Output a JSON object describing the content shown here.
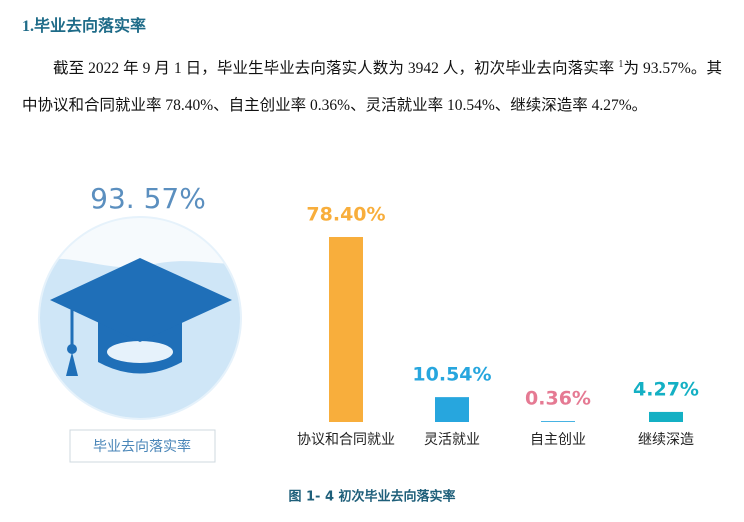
{
  "heading": "1.毕业去向落实率",
  "paragraph": {
    "before_note": "截至 2022 年 9 月 1 日，毕业生毕业去向落实人数为 3942 人，初次毕业去向落实率 ",
    "note": "1",
    "after_note": "为 93.57%。其中协议和合同就业率 78.40%、自主创业率 0.36%、灵活就业率 10.54%、继续深造率 4.27%。"
  },
  "infographic": {
    "value": "93. 57%",
    "label": "毕业去向落实率"
  },
  "chart_data": {
    "type": "bar",
    "categories": [
      "协议和合同就业",
      "灵活就业",
      "自主创业",
      "继续深造"
    ],
    "values": [
      78.4,
      10.54,
      0.36,
      4.27
    ],
    "value_labels": [
      "78.40%",
      "10.54%",
      "0.36%",
      "4.27%"
    ],
    "colors": [
      "#f8ae3c",
      "#27a6de",
      "#27a6de",
      "#14b0c4"
    ],
    "label_colors": [
      "#f8ae3c",
      "#27a6de",
      "#e57a93",
      "#14b0c4"
    ]
  },
  "caption": "图 1- 4 初次毕业去向落实率"
}
